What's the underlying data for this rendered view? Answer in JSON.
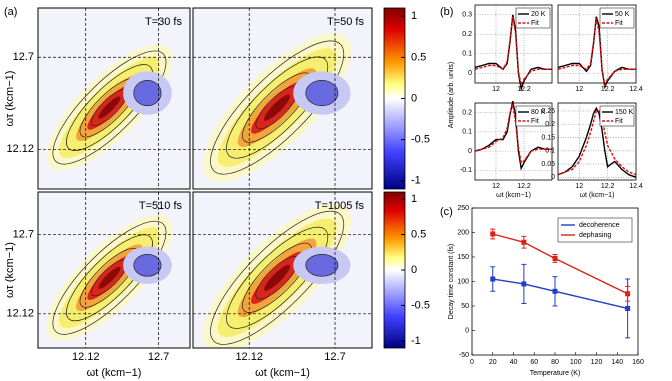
{
  "labels": [
    "(a)",
    "(b)",
    "(c)"
  ],
  "chart_data": [
    {
      "type": "heatmap",
      "title": "T=30 fs",
      "ylabel": "ωτ (kcm−1)",
      "xlim": [
        11.74,
        12.95
      ],
      "ylim": [
        11.87,
        13.01
      ],
      "yticks": [
        12.12,
        12.7
      ]
    },
    {
      "type": "heatmap",
      "title": "T=50 fs",
      "xlim": [
        11.74,
        12.95
      ],
      "ylim": [
        11.87,
        13.01
      ],
      "zlim": [
        -1.1,
        1.1
      ],
      "zticks": [
        1,
        0.5,
        0,
        -0.5,
        -1
      ]
    },
    {
      "type": "heatmap",
      "title": "T=510 fs",
      "xlabel": "ωt (kcm−1)",
      "ylabel": "ωτ (kcm−1)",
      "xlim": [
        11.74,
        12.95
      ],
      "ylim": [
        11.87,
        13.01
      ],
      "xticks": [
        12.12,
        12.7
      ],
      "yticks": [
        12.12,
        12.7
      ]
    },
    {
      "type": "heatmap",
      "title": "T=1005 fs",
      "xlabel": "ωt (kcm−1)",
      "xlim": [
        11.74,
        12.95
      ],
      "ylim": [
        11.87,
        13.01
      ],
      "xticks": [
        12.12,
        12.7
      ],
      "zlim": [
        -1.1,
        1.1
      ],
      "zticks": [
        1,
        0.5,
        0,
        -0.5,
        -1
      ]
    },
    {
      "type": "line",
      "ylabel": "Amplitude (arb. units)",
      "grid": true,
      "xlim": [
        11.85,
        12.4
      ],
      "ylim": [
        -0.05,
        0.35
      ],
      "xticks": [
        12,
        12.2
      ],
      "yticks": [
        0,
        0.1,
        0.2,
        0.3
      ],
      "x": [
        11.85,
        11.9,
        11.95,
        12.0,
        12.05,
        12.08,
        12.1,
        12.12,
        12.14,
        12.16,
        12.18,
        12.2,
        12.25,
        12.3,
        12.35,
        12.4
      ],
      "series": [
        {
          "name": "20 K",
          "color": "#000000",
          "values": [
            0.03,
            0.04,
            0.05,
            0.05,
            0.02,
            0.05,
            0.16,
            0.3,
            0.22,
            0.0,
            -0.08,
            -0.04,
            0.02,
            0.03,
            0.02,
            0.02
          ]
        },
        {
          "name": "Fit",
          "color": "#e01010",
          "style": "dashed",
          "values": [
            0.02,
            0.03,
            0.04,
            0.04,
            0.02,
            0.06,
            0.17,
            0.29,
            0.2,
            0.01,
            -0.06,
            -0.03,
            0.01,
            0.02,
            0.02,
            0.02
          ]
        }
      ]
    },
    {
      "type": "line",
      "grid": true,
      "xlim": [
        11.85,
        12.4
      ],
      "ylim": [
        -0.05,
        0.35
      ],
      "xticks": [
        12,
        12.2,
        12.4
      ],
      "x": [
        11.85,
        11.9,
        11.95,
        12.0,
        12.05,
        12.08,
        12.1,
        12.12,
        12.14,
        12.16,
        12.18,
        12.2,
        12.25,
        12.3,
        12.35,
        12.4
      ],
      "series": [
        {
          "name": "50 K",
          "color": "#000000",
          "values": [
            0.03,
            0.04,
            0.05,
            0.05,
            0.01,
            0.04,
            0.15,
            0.29,
            0.24,
            0.02,
            -0.07,
            -0.04,
            0.01,
            0.03,
            0.02,
            0.02
          ]
        },
        {
          "name": "Fit",
          "color": "#e01010",
          "style": "dashed",
          "values": [
            0.02,
            0.03,
            0.04,
            0.04,
            0.02,
            0.05,
            0.16,
            0.28,
            0.21,
            0.02,
            -0.06,
            -0.03,
            0.01,
            0.02,
            0.02,
            0.02
          ]
        }
      ]
    },
    {
      "type": "line",
      "xlabel": "ωt (kcm−1)",
      "grid": true,
      "xlim": [
        11.85,
        12.4
      ],
      "ylim": [
        -0.15,
        0.25
      ],
      "xticks": [
        12,
        12.2
      ],
      "yticks": [
        -0.1,
        0,
        0.1,
        0.2
      ],
      "x": [
        11.85,
        11.9,
        11.95,
        12.0,
        12.05,
        12.08,
        12.1,
        12.12,
        12.14,
        12.16,
        12.18,
        12.2,
        12.25,
        12.3,
        12.35,
        12.4
      ],
      "series": [
        {
          "name": "80 K",
          "color": "#000000",
          "values": [
            0.0,
            0.01,
            0.03,
            0.06,
            0.06,
            0.1,
            0.19,
            0.26,
            0.18,
            0.0,
            -0.09,
            -0.06,
            0.0,
            0.02,
            0.01,
            0.01
          ]
        },
        {
          "name": "Fit",
          "color": "#e01010",
          "style": "dashed",
          "values": [
            0.0,
            0.01,
            0.02,
            0.05,
            0.07,
            0.12,
            0.2,
            0.24,
            0.15,
            0.02,
            -0.06,
            -0.05,
            0.0,
            0.01,
            0.01,
            0.01
          ]
        }
      ]
    },
    {
      "type": "line",
      "xlabel": "ωt (kcm−1)",
      "grid": true,
      "xlim": [
        11.85,
        12.4
      ],
      "ylim": [
        -0.01,
        0.28
      ],
      "xticks": [
        12,
        12.2,
        12.4
      ],
      "yticks": [
        0,
        0.05,
        0.1,
        0.15,
        0.2,
        0.25
      ],
      "x": [
        11.85,
        11.9,
        11.95,
        12.0,
        12.05,
        12.08,
        12.1,
        12.12,
        12.14,
        12.16,
        12.18,
        12.2,
        12.25,
        12.3,
        12.35,
        12.4
      ],
      "series": [
        {
          "name": "150 K",
          "color": "#000000",
          "values": [
            0.01,
            0.02,
            0.04,
            0.08,
            0.15,
            0.2,
            0.24,
            0.26,
            0.24,
            0.18,
            0.1,
            0.04,
            0.06,
            0.03,
            0.01,
            0.0
          ]
        },
        {
          "name": "Fit",
          "color": "#e01010",
          "style": "dashed",
          "values": [
            0.01,
            0.02,
            0.03,
            0.06,
            0.12,
            0.17,
            0.21,
            0.25,
            0.25,
            0.22,
            0.17,
            0.12,
            0.07,
            0.04,
            0.02,
            0.01
          ]
        }
      ]
    },
    {
      "type": "errorline",
      "xlabel": "Temperature (K)",
      "ylabel": "Decay time constant (fs)",
      "xlim": [
        0,
        160
      ],
      "ylim": [
        -50,
        250
      ],
      "xticks": [
        0,
        20,
        40,
        60,
        80,
        100,
        120,
        140,
        160
      ],
      "yticks": [
        -50,
        0,
        50,
        100,
        150,
        200,
        250
      ],
      "legend": "upper right",
      "x": [
        20,
        50,
        80,
        150
      ],
      "series": [
        {
          "name": "decoherence",
          "color": "#1f3fc8",
          "values": [
            105,
            95,
            80,
            45
          ],
          "errors": [
            25,
            40,
            30,
            60
          ]
        },
        {
          "name": "dephasing",
          "color": "#e02018",
          "values": [
            197,
            180,
            147,
            75
          ],
          "errors": [
            10,
            12,
            8,
            15
          ]
        }
      ]
    }
  ]
}
